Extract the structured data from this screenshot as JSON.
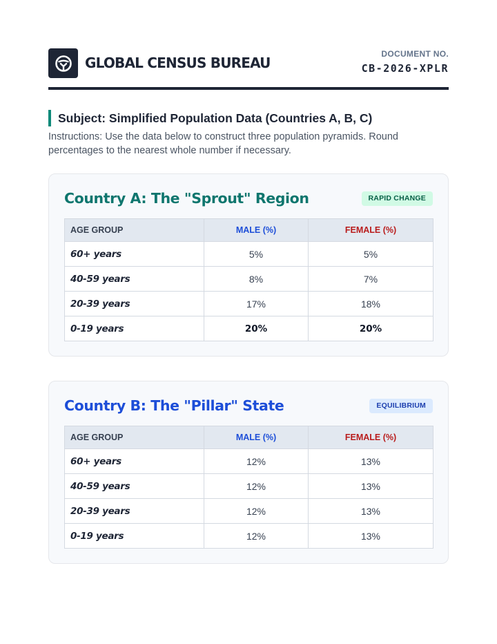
{
  "header": {
    "org_name": "GLOBAL CENSUS BUREAU",
    "doc_label": "DOCUMENT NO.",
    "doc_number": "CB-2026-XPLR",
    "logo_icon": "globe-icon"
  },
  "subject": "Subject: Simplified Population Data (Countries A, B, C)",
  "instructions": "Instructions: Use the data below to construct three population pyramids. Round percentages to the nearest whole number if necessary.",
  "countries": [
    {
      "title": "Country A: The \"Sprout\" Region",
      "badge": "RAPID CHANGE",
      "headers": [
        "AGE GROUP",
        "MALE (%)",
        "FEMALE (%)"
      ],
      "rows": [
        {
          "age": "60+ years",
          "male": "5%",
          "female": "5%"
        },
        {
          "age": "40-59 years",
          "male": "8%",
          "female": "7%"
        },
        {
          "age": "20-39 years",
          "male": "17%",
          "female": "18%"
        },
        {
          "age": "0-19 years",
          "male": "20%",
          "female": "20%"
        }
      ]
    },
    {
      "title": "Country B: The \"Pillar\" State",
      "badge": "EQUILIBRIUM",
      "headers": [
        "AGE GROUP",
        "MALE (%)",
        "FEMALE (%)"
      ],
      "rows": [
        {
          "age": "60+ years",
          "male": "12%",
          "female": "13%"
        },
        {
          "age": "40-59 years",
          "male": "12%",
          "female": "13%"
        },
        {
          "age": "20-39 years",
          "male": "12%",
          "female": "13%"
        },
        {
          "age": "0-19 years",
          "male": "12%",
          "female": "13%"
        }
      ]
    }
  ],
  "colors": {
    "navy": "#1e2535",
    "teal": "#0f766e",
    "blue": "#1d4ed8",
    "red": "#b91c1c"
  }
}
